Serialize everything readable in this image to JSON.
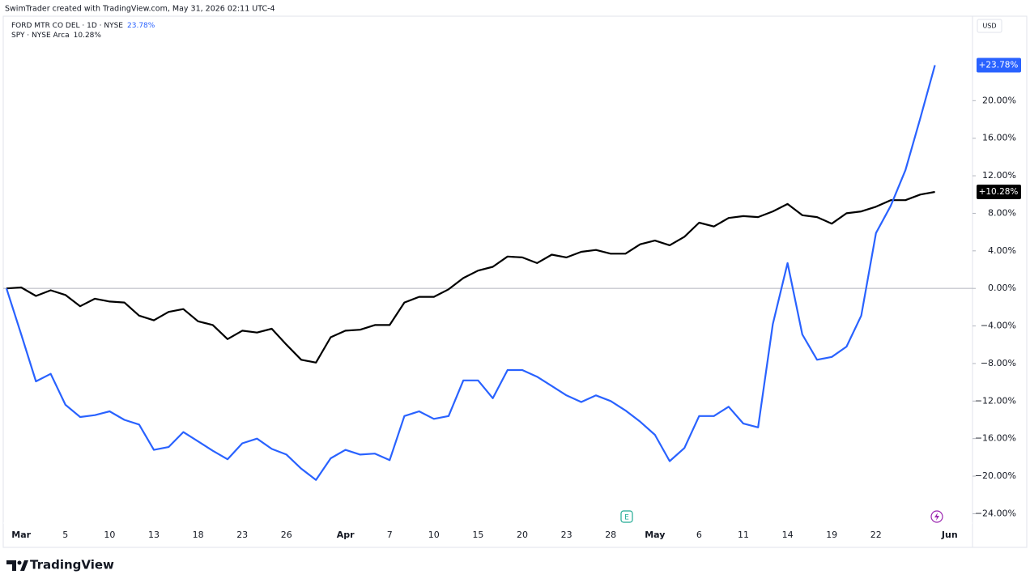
{
  "header": {
    "credit": "SwimTrader created with TradingView.com, May 31, 2026 02:11 UTC-4",
    "currency": "USD"
  },
  "footer": {
    "brand": "TradingView"
  },
  "chart_data": {
    "type": "line",
    "categories": [
      null,
      "Mar",
      null,
      null,
      "5",
      null,
      null,
      "10",
      null,
      null,
      "13",
      null,
      null,
      "18",
      null,
      null,
      "23",
      null,
      null,
      "26",
      null,
      null,
      null,
      "Apr",
      null,
      null,
      "7",
      null,
      null,
      "10",
      null,
      null,
      "15",
      null,
      null,
      "20",
      null,
      null,
      "23",
      null,
      null,
      "28",
      null,
      null,
      "May",
      null,
      null,
      "6",
      null,
      null,
      "11",
      null,
      null,
      "14",
      null,
      null,
      "19",
      null,
      null,
      "22",
      null,
      null,
      null,
      null,
      "Jun"
    ],
    "series": [
      {
        "name": "FORD MTR CO DEL · 1D · NYSE",
        "legend_value": "23.78%",
        "color": "#2962ff",
        "values": [
          0,
          -4.9,
          -9.9,
          -9.1,
          -12.4,
          -13.7,
          -13.5,
          -13.1,
          -14.0,
          -14.5,
          -17.2,
          -16.9,
          -15.3,
          -16.3,
          -17.3,
          -18.2,
          -16.5,
          -16.0,
          -17.1,
          -17.7,
          -19.2,
          -20.4,
          -18.1,
          -17.2,
          -17.7,
          -17.6,
          -18.3,
          -13.6,
          -13.1,
          -13.9,
          -13.6,
          -9.8,
          -9.8,
          -11.7,
          -8.7,
          -8.7,
          -9.4,
          -10.4,
          -11.4,
          -12.1,
          -11.4,
          -12.0,
          -13.0,
          -14.2,
          -15.6,
          -18.4,
          -17.0,
          -13.6,
          -13.6,
          -12.6,
          -14.4,
          -14.8,
          -3.8,
          2.7,
          -4.9,
          -7.6,
          -7.3,
          -6.2,
          -2.9,
          5.9,
          8.8,
          12.6,
          18.1,
          23.78,
          null
        ],
        "value_labels": [
          null,
          null,
          null,
          null,
          null,
          null,
          null,
          null,
          null,
          null,
          null,
          null,
          null,
          null,
          null,
          null,
          null,
          null,
          null,
          null,
          null,
          null,
          null,
          null,
          null,
          null,
          null,
          null,
          null,
          null,
          null,
          null,
          null,
          null,
          null,
          null,
          null,
          null,
          null,
          null,
          null,
          null,
          null,
          null,
          null,
          null,
          null,
          null,
          null,
          null,
          null,
          null,
          null,
          null,
          null,
          null,
          null,
          null,
          null,
          null,
          null,
          null,
          null,
          "+23.78%",
          null
        ]
      },
      {
        "name": "SPY · NYSE Arca",
        "legend_value": "10.28%",
        "color": "#000000",
        "values": [
          0,
          0.1,
          -0.8,
          -0.2,
          -0.7,
          -1.9,
          -1.1,
          -1.4,
          -1.5,
          -2.9,
          -3.4,
          -2.5,
          -2.2,
          -3.5,
          -3.9,
          -5.4,
          -4.5,
          -4.7,
          -4.3,
          -6.0,
          -7.6,
          -7.9,
          -5.2,
          -4.5,
          -4.4,
          -3.9,
          -3.9,
          -1.5,
          -0.9,
          -0.9,
          -0.1,
          1.1,
          1.9,
          2.3,
          3.4,
          3.3,
          2.7,
          3.6,
          3.3,
          3.9,
          4.1,
          3.7,
          3.7,
          4.7,
          5.1,
          4.6,
          5.5,
          7.0,
          6.6,
          7.5,
          7.7,
          7.6,
          8.2,
          9.0,
          7.8,
          7.6,
          6.9,
          8.0,
          8.2,
          8.7,
          9.4,
          9.4,
          10.0,
          10.28,
          null
        ],
        "value_labels": [
          null,
          null,
          null,
          null,
          null,
          null,
          null,
          null,
          null,
          null,
          null,
          null,
          null,
          null,
          null,
          null,
          null,
          null,
          null,
          null,
          null,
          null,
          null,
          null,
          null,
          null,
          null,
          null,
          null,
          null,
          null,
          null,
          null,
          null,
          null,
          null,
          null,
          null,
          null,
          null,
          null,
          null,
          null,
          null,
          null,
          null,
          null,
          null,
          null,
          null,
          null,
          null,
          null,
          null,
          null,
          null,
          null,
          null,
          null,
          null,
          null,
          null,
          null,
          "+10.28%",
          null
        ]
      }
    ],
    "ylim": [
      -25,
      29
    ],
    "yticks": [
      {
        "value": -24,
        "label": "−24.00%"
      },
      {
        "value": -20,
        "label": "−20.00%"
      },
      {
        "value": -16,
        "label": "−16.00%"
      },
      {
        "value": -12,
        "label": "−12.00%"
      },
      {
        "value": -8,
        "label": "−8.00%"
      },
      {
        "value": -4,
        "label": "−4.00%"
      },
      {
        "value": 0,
        "label": "0.00%"
      },
      {
        "value": 4,
        "label": "4.00%"
      },
      {
        "value": 8,
        "label": "8.00%"
      },
      {
        "value": 12,
        "label": "12.00%"
      },
      {
        "value": 16,
        "label": "16.00%"
      },
      {
        "value": 20,
        "label": "20.00%"
      }
    ],
    "baseline": 0,
    "earnings_marker": "E",
    "grid": false
  }
}
